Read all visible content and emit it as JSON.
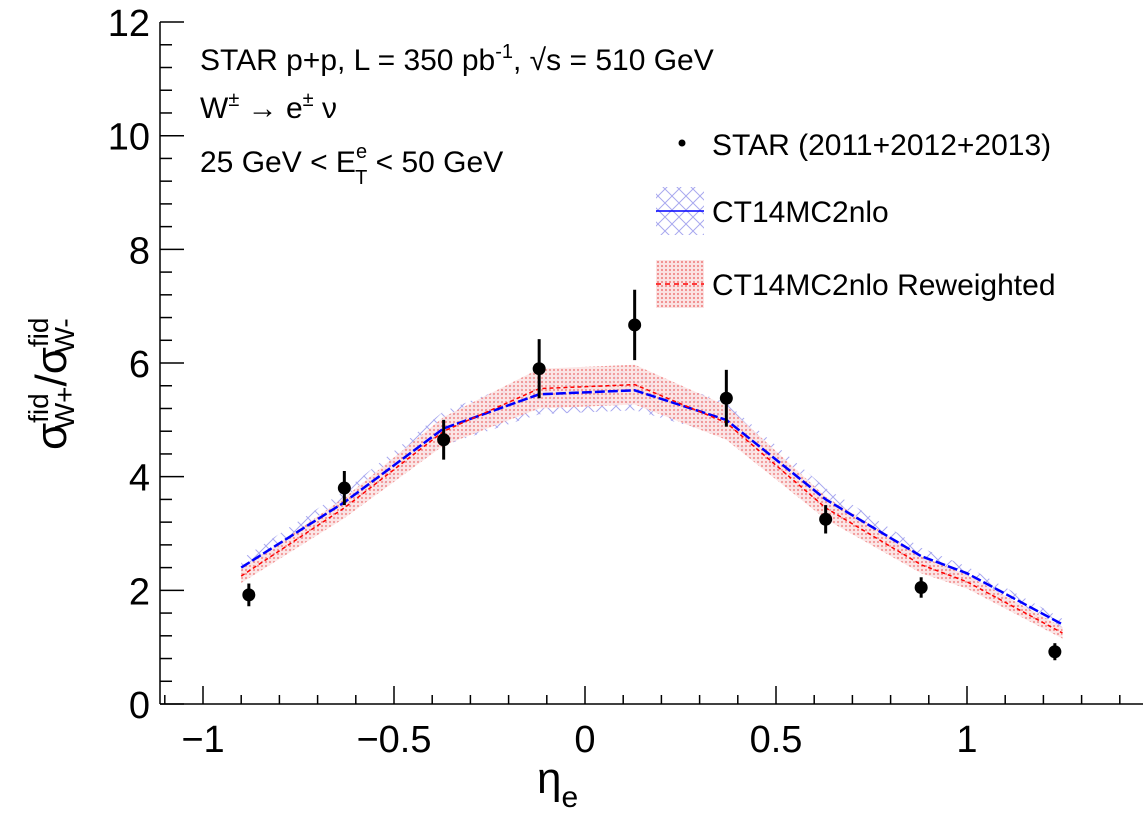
{
  "chart_data": {
    "type": "scatter",
    "ylim": [
      0,
      12
    ],
    "xlim": [
      -1.1,
      1.45
    ],
    "x_ticks": [
      -1,
      -0.5,
      0,
      0.5,
      1
    ],
    "x_tick_labels": [
      "−1",
      "−0.5",
      "0",
      "0.5",
      "1"
    ],
    "y_ticks": [
      0,
      2,
      4,
      6,
      8,
      10,
      12
    ],
    "y_tick_labels": [
      "0",
      "2",
      "4",
      "6",
      "8",
      "10",
      "12"
    ],
    "xlabel": {
      "main": "η",
      "sub": "e"
    },
    "ylabel": {
      "num": "σ",
      "num_sup": "fid",
      "num_sub": "W+",
      "slash": "/",
      "den": "σ",
      "den_sup": "fid",
      "den_sub": "W-"
    },
    "grid": false,
    "annotations": {
      "line1": {
        "pre": "STAR p+p, L = 350 pb",
        "sup": "-1",
        "post": ", √s = 510 GeV"
      },
      "line2": {
        "pre": "W",
        "sup": "±",
        "mid": " → e",
        "sup2": "±",
        "post": " ν"
      },
      "line3": {
        "pre": "25 GeV < E",
        "sup": "e",
        "sub": "T",
        "post": " < 50 GeV"
      }
    },
    "legend_position": "top-right",
    "series": [
      {
        "name": "STAR (2011+2012+2013)",
        "kind": "points",
        "color": "#000000",
        "x": [
          -0.88,
          -0.63,
          -0.37,
          -0.12,
          0.13,
          0.37,
          0.63,
          0.88,
          1.23
        ],
        "y": [
          1.92,
          3.8,
          4.65,
          5.9,
          6.67,
          5.38,
          3.25,
          2.05,
          0.92
        ],
        "err": [
          0.2,
          0.3,
          0.35,
          0.52,
          0.62,
          0.5,
          0.25,
          0.18,
          0.15
        ]
      },
      {
        "name": "CT14MC2nlo",
        "kind": "band",
        "color": "#0000ff",
        "band_color": "#9999ee",
        "x": [
          -0.9,
          -0.63,
          -0.37,
          -0.12,
          0.13,
          0.37,
          0.63,
          0.88,
          1.0,
          1.25
        ],
        "y": [
          2.4,
          3.55,
          4.85,
          5.45,
          5.52,
          5.0,
          3.6,
          2.6,
          2.3,
          1.4
        ],
        "half_width": [
          0.15,
          0.2,
          0.3,
          0.35,
          0.35,
          0.3,
          0.2,
          0.15,
          0.12,
          0.1
        ]
      },
      {
        "name": "CT14MC2nlo Reweighted",
        "kind": "band",
        "color": "#ff0000",
        "band_color": "#f4a8a8",
        "x": [
          -0.9,
          -0.63,
          -0.37,
          -0.12,
          0.13,
          0.37,
          0.63,
          0.88,
          1.0,
          1.25
        ],
        "y": [
          2.25,
          3.45,
          4.8,
          5.55,
          5.62,
          4.95,
          3.45,
          2.45,
          2.15,
          1.25
        ],
        "half_width": [
          0.12,
          0.18,
          0.25,
          0.35,
          0.35,
          0.3,
          0.2,
          0.15,
          0.12,
          0.1
        ]
      }
    ]
  }
}
